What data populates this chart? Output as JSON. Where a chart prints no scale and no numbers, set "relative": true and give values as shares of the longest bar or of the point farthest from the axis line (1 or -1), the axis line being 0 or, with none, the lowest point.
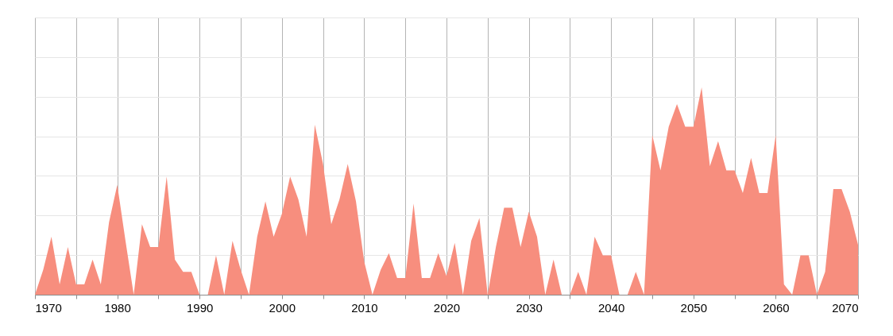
{
  "chart_data": {
    "type": "area",
    "relative": true,
    "grid": true,
    "xlim": [
      1970,
      2070
    ],
    "xticks": [
      1970,
      {
        "value": 1975,
        "label": null
      },
      1980,
      {
        "value": 1985,
        "label": null
      },
      1990,
      {
        "value": 1995,
        "label": null
      },
      2000,
      {
        "value": 2005,
        "label": null
      },
      2010,
      {
        "value": 2015,
        "label": null
      },
      2020,
      {
        "value": 2025,
        "label": null
      },
      2030,
      {
        "value": 2035,
        "label": null
      },
      2040,
      {
        "value": 2045,
        "label": null
      },
      2050,
      {
        "value": 2055,
        "label": null
      },
      2060,
      {
        "value": 2065,
        "label": null
      },
      2070
    ],
    "x": [
      1970,
      1971,
      1972,
      1973,
      1974,
      1975,
      1976,
      1977,
      1978,
      1979,
      1980,
      1981,
      1982,
      1983,
      1984,
      1985,
      1986,
      1987,
      1988,
      1989,
      1990,
      1991,
      1992,
      1993,
      1994,
      1995,
      1996,
      1997,
      1998,
      1999,
      2000,
      2001,
      2002,
      2003,
      2004,
      2005,
      2006,
      2007,
      2008,
      2009,
      2010,
      2011,
      2012,
      2013,
      2014,
      2015,
      2016,
      2017,
      2018,
      2019,
      2020,
      2021,
      2022,
      2023,
      2024,
      2025,
      2026,
      2027,
      2028,
      2029,
      2030,
      2031,
      2032,
      2033,
      2034,
      2035,
      2036,
      2037,
      2038,
      2039,
      2040,
      2041,
      2042,
      2043,
      2044,
      2045,
      2046,
      2047,
      2048,
      2049,
      2050,
      2051,
      2052,
      2053,
      2054,
      2055,
      2056,
      2057,
      2058,
      2059,
      2060,
      2061,
      2062,
      2063,
      2064,
      2065,
      2066,
      2067,
      2068,
      2069,
      2070
    ],
    "series": [
      {
        "color": "#f78e7e",
        "values": [
          0,
          0.12,
          0.28,
          0.05,
          0.23,
          0.05,
          0.05,
          0.17,
          0.05,
          0.35,
          0.53,
          0.26,
          0,
          0.34,
          0.23,
          0.23,
          0.57,
          0.17,
          0.11,
          0.11,
          0,
          0,
          0.19,
          0,
          0.26,
          0.12,
          0,
          0.28,
          0.45,
          0.28,
          0.39,
          0.57,
          0.46,
          0.28,
          0.82,
          0.63,
          0.34,
          0.46,
          0.63,
          0.45,
          0.16,
          0,
          0.12,
          0.2,
          0.08,
          0.08,
          0.44,
          0.08,
          0.08,
          0.2,
          0.09,
          0.25,
          0,
          0.26,
          0.37,
          0,
          0.23,
          0.42,
          0.42,
          0.23,
          0.4,
          0.28,
          0,
          0.17,
          0,
          0,
          0.11,
          0,
          0.28,
          0.19,
          0.19,
          0,
          0,
          0.11,
          0,
          0.77,
          0.6,
          0.81,
          0.92,
          0.81,
          0.81,
          1,
          0.62,
          0.74,
          0.6,
          0.6,
          0.49,
          0.66,
          0.49,
          0.49,
          0.77,
          0.05,
          0,
          0.19,
          0.19,
          0,
          0.11,
          0.51,
          0.51,
          0.4,
          0.24
        ]
      }
    ]
  }
}
